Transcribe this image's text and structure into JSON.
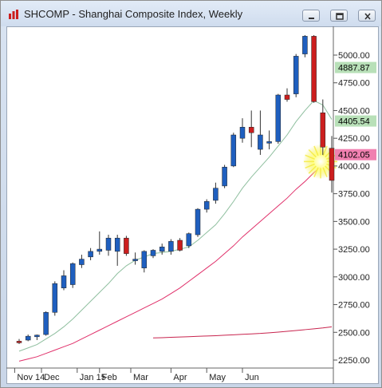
{
  "window": {
    "title": "SHCOMP - Shanghai Composite Index, Weekly",
    "buttons": [
      "minimize",
      "restore",
      "close"
    ]
  },
  "colors": {
    "up_candle": "#1f5fbf",
    "down_candle": "#cc1e1e",
    "ma_short": "#8fbf9f",
    "ma_long": "#e0306a",
    "tag_green_bg": "#b8e0b8",
    "tag_pink_bg": "#f080b0"
  },
  "chart_data": {
    "type": "candlestick",
    "title": "SHCOMP - Shanghai Composite Index, Weekly",
    "ylim": [
      2200,
      5300
    ],
    "y_ticks": [
      5000.0,
      4750.0,
      4500.0,
      4250.0,
      4000.0,
      3750.0,
      3500.0,
      3250.0,
      3000.0,
      2750.0,
      2500.0,
      2250.0
    ],
    "y_tick_labels": [
      "5000.00",
      "4750.00",
      "4500.00",
      "4250.00",
      "4000.00",
      "3750.00",
      "3500.00",
      "3250.00",
      "3000.00",
      "2750.00",
      "2500.00",
      "2250.00"
    ],
    "x_labels": [
      {
        "label": "Nov 14",
        "index": 0
      },
      {
        "label": "Dec",
        "index": 3
      },
      {
        "label": "Jan 15",
        "index": 7
      },
      {
        "label": "Feb",
        "index": 9.5
      },
      {
        "label": "Mar",
        "index": 13
      },
      {
        "label": "Apr",
        "index": 17.5
      },
      {
        "label": "May",
        "index": 21.5
      },
      {
        "label": "Jun",
        "index": 25.5
      }
    ],
    "candles": [
      {
        "open": 2420,
        "high": 2440,
        "low": 2395,
        "close": 2410
      },
      {
        "open": 2430,
        "high": 2480,
        "low": 2420,
        "close": 2465
      },
      {
        "open": 2460,
        "high": 2480,
        "low": 2430,
        "close": 2475
      },
      {
        "open": 2480,
        "high": 2690,
        "low": 2470,
        "close": 2680
      },
      {
        "open": 2680,
        "high": 2960,
        "low": 2650,
        "close": 2940
      },
      {
        "open": 2900,
        "high": 3060,
        "low": 2880,
        "close": 3010
      },
      {
        "open": 2930,
        "high": 3130,
        "low": 2900,
        "close": 3120
      },
      {
        "open": 3110,
        "high": 3200,
        "low": 3080,
        "close": 3160
      },
      {
        "open": 3180,
        "high": 3260,
        "low": 3150,
        "close": 3230
      },
      {
        "open": 3230,
        "high": 3410,
        "low": 3200,
        "close": 3250
      },
      {
        "open": 3240,
        "high": 3380,
        "low": 3190,
        "close": 3350
      },
      {
        "open": 3230,
        "high": 3380,
        "low": 3100,
        "close": 3350
      },
      {
        "open": 3350,
        "high": 3370,
        "low": 3190,
        "close": 3210
      },
      {
        "open": 3150,
        "high": 3220,
        "low": 3110,
        "close": 3160
      },
      {
        "open": 3080,
        "high": 3240,
        "low": 3040,
        "close": 3230
      },
      {
        "open": 3190,
        "high": 3250,
        "low": 3170,
        "close": 3240
      },
      {
        "open": 3230,
        "high": 3300,
        "low": 3200,
        "close": 3270
      },
      {
        "open": 3230,
        "high": 3340,
        "low": 3200,
        "close": 3320
      },
      {
        "open": 3330,
        "high": 3350,
        "low": 3230,
        "close": 3240
      },
      {
        "open": 3280,
        "high": 3400,
        "low": 3260,
        "close": 3390
      },
      {
        "open": 3380,
        "high": 3620,
        "low": 3360,
        "close": 3610
      },
      {
        "open": 3610,
        "high": 3700,
        "low": 3580,
        "close": 3680
      },
      {
        "open": 3690,
        "high": 3850,
        "low": 3660,
        "close": 3800
      },
      {
        "open": 3820,
        "high": 4010,
        "low": 3800,
        "close": 3990
      },
      {
        "open": 4000,
        "high": 4300,
        "low": 3990,
        "close": 4280
      },
      {
        "open": 4250,
        "high": 4430,
        "low": 4210,
        "close": 4350
      },
      {
        "open": 4350,
        "high": 4500,
        "low": 4170,
        "close": 4300
      },
      {
        "open": 4150,
        "high": 4500,
        "low": 4100,
        "close": 4280
      },
      {
        "open": 4220,
        "high": 4320,
        "low": 4150,
        "close": 4220
      },
      {
        "open": 4220,
        "high": 4650,
        "low": 4200,
        "close": 4640
      },
      {
        "open": 4640,
        "high": 4700,
        "low": 4580,
        "close": 4600
      },
      {
        "open": 4650,
        "high": 5010,
        "low": 4620,
        "close": 4990
      },
      {
        "open": 5010,
        "high": 5180,
        "low": 4980,
        "close": 5170
      },
      {
        "open": 5170,
        "high": 5180,
        "low": 4570,
        "close": 4580
      },
      {
        "open": 4480,
        "high": 4600,
        "low": 4100,
        "close": 4170
      },
      {
        "open": 4160,
        "high": 4270,
        "low": 3760,
        "close": 3870
      }
    ],
    "ma_short_series": [
      2330,
      2360,
      2390,
      2440,
      2490,
      2550,
      2620,
      2700,
      2780,
      2860,
      2940,
      3030,
      3100,
      3150,
      3180,
      3210,
      3220,
      3230,
      3250,
      3270,
      3330,
      3400,
      3470,
      3570,
      3680,
      3800,
      3900,
      3990,
      4080,
      4180,
      4280,
      4400,
      4500,
      4590,
      4550,
      4420
    ],
    "ma_long_series": [
      2240,
      2260,
      2280,
      2310,
      2340,
      2370,
      2400,
      2440,
      2480,
      2520,
      2560,
      2600,
      2640,
      2680,
      2720,
      2760,
      2800,
      2850,
      2900,
      2960,
      3020,
      3080,
      3140,
      3210,
      3280,
      3360,
      3430,
      3500,
      3570,
      3640,
      3710,
      3790,
      3860,
      3940,
      4010,
      4080
    ],
    "ma_very_long_series": [
      2450,
      2452,
      2455,
      2458,
      2461,
      2464,
      2467,
      2470,
      2474,
      2478,
      2482,
      2486,
      2490,
      2496,
      2502,
      2509,
      2516,
      2524,
      2532,
      2540,
      2550
    ],
    "ma_very_long_start_index": 15,
    "price_tags": [
      {
        "label": "4887.87",
        "value": 4887.87,
        "style": "green"
      },
      {
        "label": "4405.54",
        "value": 4405.54,
        "style": "green"
      },
      {
        "label": "4102.05",
        "value": 4102.05,
        "style": "pink"
      }
    ],
    "grid": false,
    "legend": "none"
  }
}
